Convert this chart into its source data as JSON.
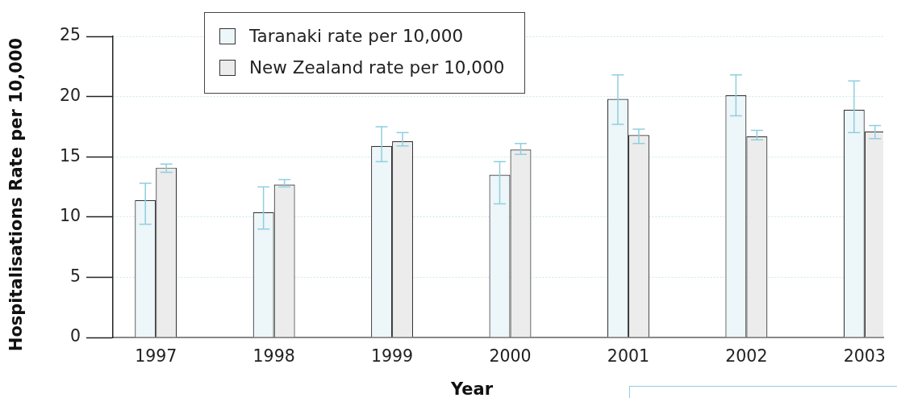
{
  "chart_data": {
    "type": "bar",
    "xlabel": "Year",
    "ylabel": "Hospitalisations Rate per 10,000",
    "categories": [
      "1997",
      "1998",
      "1999",
      "2000",
      "2001",
      "2002",
      "2003"
    ],
    "series": [
      {
        "name": "Taranaki rate per 10,000",
        "color": "#edf6f8",
        "values": [
          11.4,
          10.4,
          15.9,
          13.5,
          19.8,
          20.1,
          18.9
        ],
        "errors": [
          [
            9.4,
            12.8
          ],
          [
            9.0,
            12.5
          ],
          [
            14.6,
            17.5
          ],
          [
            11.1,
            14.6
          ],
          [
            17.7,
            21.8
          ],
          [
            18.4,
            21.8
          ],
          [
            17.0,
            21.3
          ]
        ]
      },
      {
        "name": "New Zealand rate per 10,000",
        "color": "#ececec",
        "values": [
          14.1,
          12.7,
          16.3,
          15.6,
          16.8,
          16.7,
          17.1
        ],
        "errors": [
          [
            13.7,
            14.4
          ],
          [
            12.5,
            13.1
          ],
          [
            15.9,
            17.0
          ],
          [
            15.2,
            16.1
          ],
          [
            16.1,
            17.3
          ],
          [
            16.4,
            17.2
          ],
          [
            16.5,
            17.6
          ]
        ]
      }
    ],
    "ylim": [
      0,
      25
    ],
    "yticks": [
      0,
      5,
      10,
      15,
      20,
      25
    ],
    "grid": "y",
    "legend": "top left"
  }
}
